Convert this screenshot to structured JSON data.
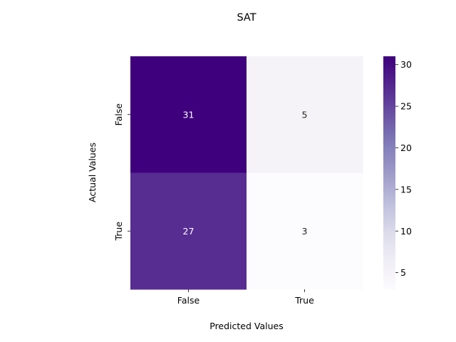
{
  "chart_data": {
    "type": "heatmap",
    "title": "SAT",
    "xlabel": "Predicted Values",
    "ylabel": "Actual Values",
    "x_categories": [
      "False",
      "True"
    ],
    "y_categories": [
      "False",
      "True"
    ],
    "values": [
      [
        31,
        5
      ],
      [
        27,
        3
      ]
    ],
    "colormap": "Purples",
    "colorbar": {
      "range": [
        3,
        31
      ],
      "ticks": [
        5,
        10,
        15,
        20,
        25,
        30
      ]
    }
  }
}
